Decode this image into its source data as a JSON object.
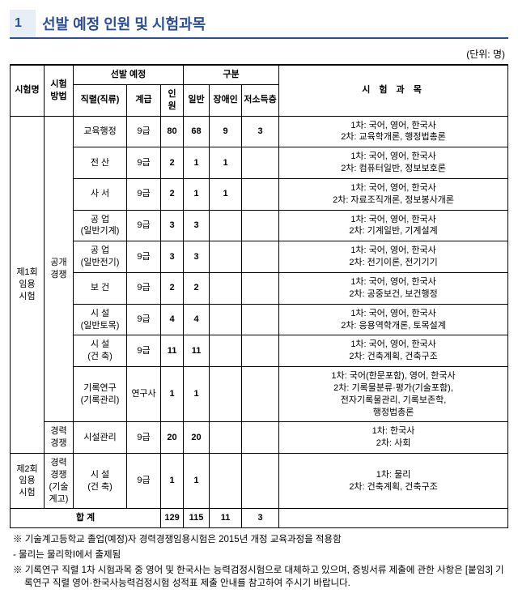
{
  "heading": {
    "num": "1",
    "title": "선발 예정 인원 및 시험과목"
  },
  "unit": "(단위: 명)",
  "header": {
    "exam_name": "시험명",
    "exam_method": "시험\n방법",
    "selection": "선발 예정",
    "category": "구분",
    "subjects_title": "시 험 과 목",
    "series": "직렬(직류)",
    "grade": "계급",
    "count": "인\n원",
    "general": "일반",
    "disabled": "장애인",
    "lowincome": "저소득층"
  },
  "groups": [
    {
      "exam_name": "제1회\n임용\n시험",
      "blocks": [
        {
          "method": "공개\n경쟁",
          "rows": [
            {
              "series": "교육행정",
              "grade": "9급",
              "count": "80",
              "general": "68",
              "disabled": "9",
              "lowincome": "3",
              "subjects": "1차: 국어, 영어, 한국사\n2차: 교육학개론, 행정법총론"
            },
            {
              "series": "전    산",
              "grade": "9급",
              "count": "2",
              "general": "1",
              "disabled": "1",
              "lowincome": "",
              "subjects": "1차: 국어, 영어, 한국사\n2차: 컴퓨터일반, 정보보호론"
            },
            {
              "series": "사    서",
              "grade": "9급",
              "count": "2",
              "general": "1",
              "disabled": "1",
              "lowincome": "",
              "subjects": "1차: 국어, 영어, 한국사\n2차: 자료조직개론, 정보봉사개론"
            },
            {
              "series": "공    업\n(일반기계)",
              "grade": "9급",
              "count": "3",
              "general": "3",
              "disabled": "",
              "lowincome": "",
              "subjects": "1차: 국어, 영어, 한국사\n2차: 기계일반, 기계설계"
            },
            {
              "series": "공    업\n(일반전기)",
              "grade": "9급",
              "count": "3",
              "general": "3",
              "disabled": "",
              "lowincome": "",
              "subjects": "1차: 국어, 영어, 한국사\n2차: 전기이론, 전기기기"
            },
            {
              "series": "보    건",
              "grade": "9급",
              "count": "2",
              "general": "2",
              "disabled": "",
              "lowincome": "",
              "subjects": "1차: 국어, 영어, 한국사\n2차: 공중보건, 보건행정"
            },
            {
              "series": "시    설\n(일반토목)",
              "grade": "9급",
              "count": "4",
              "general": "4",
              "disabled": "",
              "lowincome": "",
              "subjects": "1차: 국어, 영어, 한국사\n2차: 응용역학개론, 토목설계"
            },
            {
              "series": "시    설\n(건    축)",
              "grade": "9급",
              "count": "11",
              "general": "11",
              "disabled": "",
              "lowincome": "",
              "subjects": "1차: 국어, 영어, 한국사\n2차: 건축계획, 건축구조"
            },
            {
              "series": "기록연구\n(기록관리)",
              "grade": "연구사",
              "count": "1",
              "general": "1",
              "disabled": "",
              "lowincome": "",
              "subjects": "1차: 국어(한문포함), 영어, 한국사\n2차: 기록물분류·평가(기술포함),\n전자기록물관리, 기록보존학,\n행정법총론"
            }
          ]
        },
        {
          "method": "경력\n경쟁",
          "rows": [
            {
              "series": "시설관리",
              "grade": "9급",
              "count": "20",
              "general": "20",
              "disabled": "",
              "lowincome": "",
              "subjects": "1차: 한국사\n2차: 사회"
            }
          ]
        }
      ]
    },
    {
      "exam_name": "제2회\n임용\n시험",
      "blocks": [
        {
          "method": "경력\n경쟁\n(기술\n계고)",
          "rows": [
            {
              "series": "시    설\n(건    축)",
              "grade": "9급",
              "count": "1",
              "general": "1",
              "disabled": "",
              "lowincome": "",
              "subjects": "1차: 물리\n2차: 건축계획, 건축구조"
            }
          ]
        }
      ]
    }
  ],
  "total": {
    "label": "합    계",
    "count": "129",
    "general": "115",
    "disabled": "11",
    "lowincome": "3"
  },
  "footnotes": [
    "※ 기술계고등학교 졸업(예정)자 경력경쟁임용시험은 2015년 개정 교육과정을 적용함",
    "   - 물리는 물리학Ⅰ에서 출제됨",
    "※ 기록연구 직렬 1차 시험과목 중 영어 및 한국사는 능력검정시험으로 대체하고 있으며, 증빙서류 제출에 관한 사항은 [붙임3] 기록연구 직렬 영어·한국사능력검정시험 성적표 제출 안내를 참고하여 주시기 바랍니다."
  ]
}
